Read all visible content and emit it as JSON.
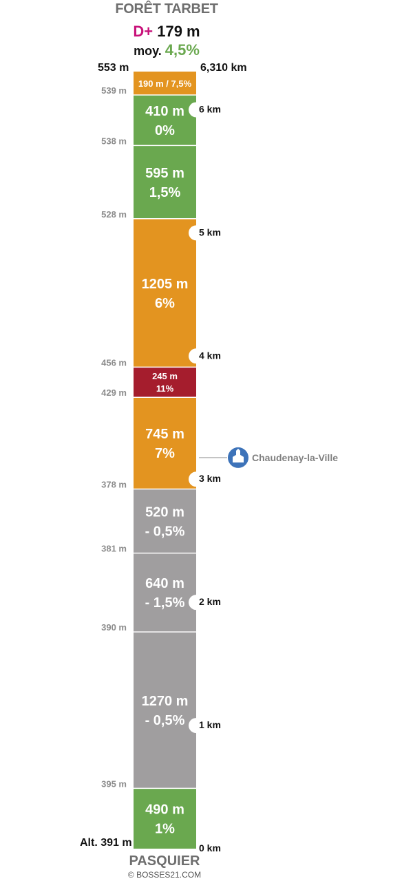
{
  "header": {
    "title": "FORÊT TARBET",
    "dplus_label": "D+",
    "dplus_value": "179 m",
    "moy_label": "moy.",
    "moy_value": "4,5%",
    "top_altitude": "553 m",
    "top_distance": "6,310 km"
  },
  "footer": {
    "bottom_altitude": "Alt. 391 m",
    "start_name": "PASQUIER",
    "copyright": "© BOSSES21.COM"
  },
  "colors": {
    "gray": "#a09e9f",
    "green": "#6aa84f",
    "orange": "#e39420",
    "red": "#a51d2d",
    "poi": "#3d73b9"
  },
  "chart_data": {
    "type": "bar",
    "orientation": "vertical-stacked-climb-profile",
    "total_km": 6.31,
    "segments": [
      {
        "length_m": 490,
        "grade": "1%",
        "label_top": "490 m",
        "label_bottom": "1%",
        "color": "green",
        "alt_end": "395 m"
      },
      {
        "length_m": 1270,
        "grade": "- 0,5%",
        "label_top": "1270 m",
        "label_bottom": "- 0,5%",
        "color": "gray",
        "alt_end": "390 m"
      },
      {
        "length_m": 640,
        "grade": "- 1,5%",
        "label_top": "640 m",
        "label_bottom": "- 1,5%",
        "color": "gray",
        "alt_end": "381 m"
      },
      {
        "length_m": 520,
        "grade": "- 0,5%",
        "label_top": "520 m",
        "label_bottom": "- 0,5%",
        "color": "gray",
        "alt_end": "378 m"
      },
      {
        "length_m": 745,
        "grade": "7%",
        "label_top": "745 m",
        "label_bottom": "7%",
        "color": "orange",
        "alt_end": "429 m"
      },
      {
        "length_m": 245,
        "grade": "11%",
        "label_top": "245 m",
        "label_bottom": "11%",
        "color": "red",
        "alt_end": "456 m"
      },
      {
        "length_m": 1205,
        "grade": "6%",
        "label_top": "1205 m",
        "label_bottom": "6%",
        "color": "orange",
        "alt_end": "528 m"
      },
      {
        "length_m": 595,
        "grade": "1,5%",
        "label_top": "595 m",
        "label_bottom": "1,5%",
        "color": "green",
        "alt_end": "538 m"
      },
      {
        "length_m": 410,
        "grade": "0%",
        "label_top": "410 m",
        "label_bottom": "0%",
        "color": "green",
        "alt_end": "539 m"
      },
      {
        "length_m": 190,
        "grade": "7,5%",
        "label_single": "190 m / 7,5%",
        "color": "orange"
      }
    ],
    "km_ticks": [
      {
        "km": 0,
        "label": "0 km"
      },
      {
        "km": 1,
        "label": "1 km"
      },
      {
        "km": 2,
        "label": "2 km"
      },
      {
        "km": 3,
        "label": "3 km"
      },
      {
        "km": 4,
        "label": "4 km"
      },
      {
        "km": 5,
        "label": "5 km"
      },
      {
        "km": 6,
        "label": "6 km"
      }
    ],
    "poi": {
      "name": "Chaudenay-la-Ville",
      "icon": "church-icon",
      "at_m": 3175
    }
  }
}
